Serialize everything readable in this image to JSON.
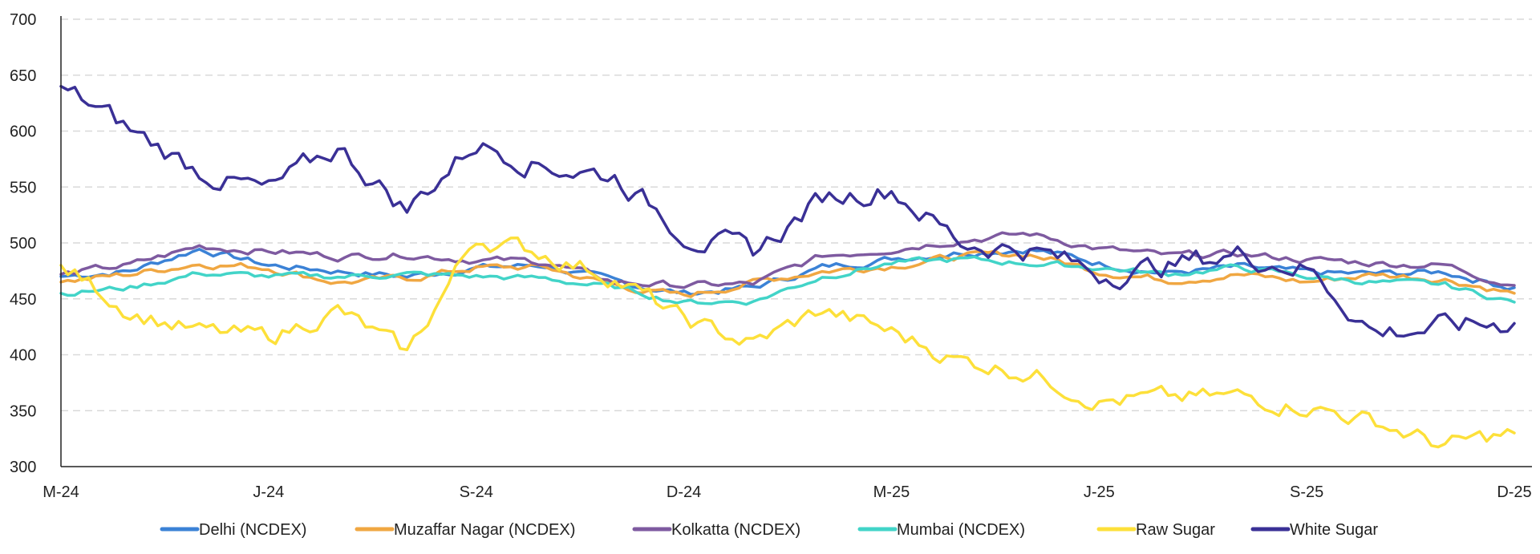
{
  "chart_data": {
    "type": "line",
    "title": "",
    "xlabel": "",
    "ylabel": "",
    "x_range": [
      "2024-03",
      "2025-12"
    ],
    "x_ticks": [
      "M-24",
      "J-24",
      "S-24",
      "D-24",
      "M-25",
      "J-25",
      "S-25",
      "D-25"
    ],
    "ylim": [
      300,
      700
    ],
    "y_ticks": [
      300,
      350,
      400,
      450,
      500,
      550,
      600,
      650,
      700
    ],
    "grid": "horizontal dashed",
    "legend_position": "bottom",
    "series": [
      {
        "name": "Delhi (NCDEX)",
        "color": "#3b82d6",
        "points": [
          [
            "2024-03",
            470
          ],
          [
            "2024-04",
            475
          ],
          [
            "2024-05",
            495
          ],
          [
            "2024-06",
            480
          ],
          [
            "2024-07",
            475
          ],
          [
            "2024-08",
            470
          ],
          [
            "2024-09",
            478
          ],
          [
            "2024-10",
            480
          ],
          [
            "2024-11",
            465
          ],
          [
            "2024-12",
            455
          ],
          [
            "2025-01",
            460
          ],
          [
            "2025-02",
            478
          ],
          [
            "2025-03",
            486
          ],
          [
            "2025-04",
            492
          ],
          [
            "2025-05",
            495
          ],
          [
            "2025-06",
            482
          ],
          [
            "2025-07",
            473
          ],
          [
            "2025-08",
            478
          ],
          [
            "2025-09",
            473
          ],
          [
            "2025-10",
            472
          ],
          [
            "2025-11",
            474
          ],
          [
            "2025-12",
            460
          ]
        ]
      },
      {
        "name": "Muzaffar Nagar (NCDEX)",
        "color": "#f0a742",
        "points": [
          [
            "2024-03",
            465
          ],
          [
            "2024-04",
            472
          ],
          [
            "2024-05",
            482
          ],
          [
            "2024-06",
            478
          ],
          [
            "2024-07",
            465
          ],
          [
            "2024-08",
            468
          ],
          [
            "2024-09",
            478
          ],
          [
            "2024-10",
            478
          ],
          [
            "2024-11",
            462
          ],
          [
            "2024-12",
            452
          ],
          [
            "2025-01",
            465
          ],
          [
            "2025-02",
            475
          ],
          [
            "2025-03",
            480
          ],
          [
            "2025-04",
            488
          ],
          [
            "2025-05",
            490
          ],
          [
            "2025-06",
            475
          ],
          [
            "2025-07",
            467
          ],
          [
            "2025-08",
            472
          ],
          [
            "2025-09",
            465
          ],
          [
            "2025-10",
            472
          ],
          [
            "2025-11",
            468
          ],
          [
            "2025-12",
            455
          ]
        ]
      },
      {
        "name": "Kolkatta  (NCDEX)",
        "color": "#7e5aa0",
        "points": [
          [
            "2024-03",
            472
          ],
          [
            "2024-04",
            480
          ],
          [
            "2024-05",
            497
          ],
          [
            "2024-06",
            493
          ],
          [
            "2024-07",
            488
          ],
          [
            "2024-08",
            490
          ],
          [
            "2024-09",
            485
          ],
          [
            "2024-10",
            483
          ],
          [
            "2024-11",
            465
          ],
          [
            "2024-12",
            462
          ],
          [
            "2025-01",
            463
          ],
          [
            "2025-02",
            488
          ],
          [
            "2025-03",
            495
          ],
          [
            "2025-04",
            503
          ],
          [
            "2025-05",
            508
          ],
          [
            "2025-06",
            495
          ],
          [
            "2025-07",
            488
          ],
          [
            "2025-08",
            490
          ],
          [
            "2025-09",
            485
          ],
          [
            "2025-10",
            482
          ],
          [
            "2025-11",
            480
          ],
          [
            "2025-12",
            462
          ]
        ]
      },
      {
        "name": "Mumbai  (NCDEX)",
        "color": "#42d4c8",
        "points": [
          [
            "2024-03",
            455
          ],
          [
            "2024-04",
            460
          ],
          [
            "2024-05",
            473
          ],
          [
            "2024-06",
            470
          ],
          [
            "2024-07",
            470
          ],
          [
            "2024-08",
            472
          ],
          [
            "2024-09",
            470
          ],
          [
            "2024-10",
            468
          ],
          [
            "2024-11",
            460
          ],
          [
            "2024-12",
            447
          ],
          [
            "2025-01",
            448
          ],
          [
            "2025-02",
            470
          ],
          [
            "2025-03",
            482
          ],
          [
            "2025-04",
            485
          ],
          [
            "2025-05",
            482
          ],
          [
            "2025-06",
            478
          ],
          [
            "2025-07",
            472
          ],
          [
            "2025-08",
            478
          ],
          [
            "2025-09",
            470
          ],
          [
            "2025-10",
            465
          ],
          [
            "2025-11",
            462
          ],
          [
            "2025-12",
            447
          ]
        ]
      },
      {
        "name": "Raw Sugar",
        "color": "#fde03a",
        "points": [
          [
            "2024-03",
            480
          ],
          [
            "2024-04",
            440
          ],
          [
            "2024-05",
            420
          ],
          [
            "2024-06",
            415
          ],
          [
            "2024-07",
            440
          ],
          [
            "2024-08",
            400
          ],
          [
            "2024-09",
            505
          ],
          [
            "2024-10",
            490
          ],
          [
            "2024-11",
            470
          ],
          [
            "2024-12",
            430
          ],
          [
            "2025-01",
            410
          ],
          [
            "2025-02",
            440
          ],
          [
            "2025-03",
            420
          ],
          [
            "2025-04",
            395
          ],
          [
            "2025-05",
            385
          ],
          [
            "2025-06",
            360
          ],
          [
            "2025-07",
            360
          ],
          [
            "2025-08",
            362
          ],
          [
            "2025-09",
            355
          ],
          [
            "2025-10",
            340
          ],
          [
            "2025-11",
            318
          ],
          [
            "2025-12",
            330
          ]
        ]
      },
      {
        "name": "White Sugar",
        "color": "#3a3096",
        "points": [
          [
            "2024-03",
            640
          ],
          [
            "2024-04",
            600
          ],
          [
            "2024-05",
            565
          ],
          [
            "2024-06",
            545
          ],
          [
            "2024-07",
            585
          ],
          [
            "2024-08",
            530
          ],
          [
            "2024-09",
            590
          ],
          [
            "2024-10",
            570
          ],
          [
            "2024-11",
            560
          ],
          [
            "2024-12",
            510
          ],
          [
            "2025-01",
            490
          ],
          [
            "2025-02",
            540
          ],
          [
            "2025-03",
            550
          ],
          [
            "2025-04",
            500
          ],
          [
            "2025-05",
            495
          ],
          [
            "2025-06",
            472
          ],
          [
            "2025-07",
            480
          ],
          [
            "2025-08",
            490
          ],
          [
            "2025-09",
            478
          ],
          [
            "2025-10",
            420
          ],
          [
            "2025-11",
            425
          ],
          [
            "2025-12",
            428
          ]
        ]
      }
    ]
  }
}
